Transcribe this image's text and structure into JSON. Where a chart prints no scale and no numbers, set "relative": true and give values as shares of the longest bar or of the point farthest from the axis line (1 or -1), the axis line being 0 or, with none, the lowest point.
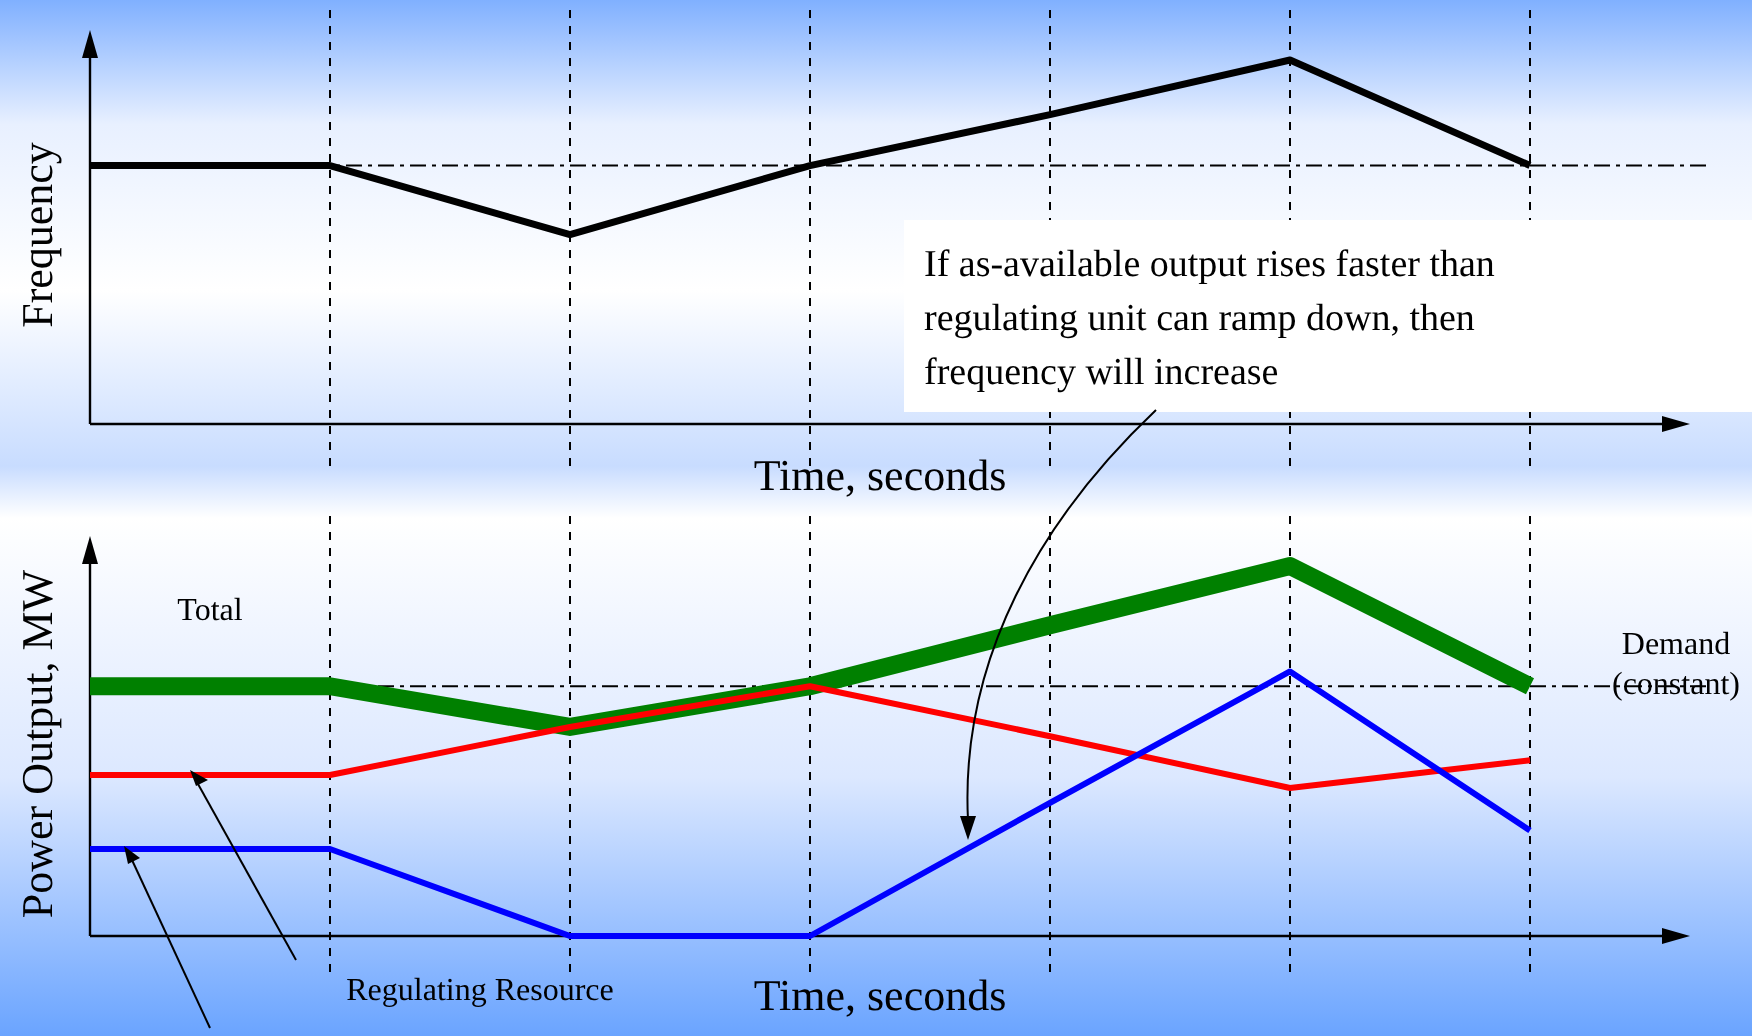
{
  "chart_data": [
    {
      "type": "line",
      "relative": true,
      "ylabel": "Frequency",
      "xlabel": "Time, seconds",
      "categories": [
        null,
        null,
        null,
        null,
        null,
        null,
        null
      ],
      "grid": "x",
      "line_style": "solid",
      "series": [
        {
          "color": "#000000",
          "values": [
            0.71,
            0.71,
            0.52,
            0.71,
            0.85,
            1,
            0.71
          ]
        }
      ],
      "ref_lines": [
        {
          "axis": "y",
          "value": 0.71,
          "line_style": "dashdot",
          "color": "#000000"
        }
      ],
      "annotations": [
        "If as-available output rises faster than regulating unit can ramp down, then frequency will increase"
      ]
    },
    {
      "type": "line",
      "relative": true,
      "ylabel": "Power Output, MW",
      "xlabel": "Time, seconds",
      "categories": [
        null,
        null,
        null,
        null,
        null,
        null,
        null
      ],
      "grid": "x",
      "line_style": "solid",
      "series": [
        {
          "color": "#008000",
          "values": [
            0.675,
            0.675,
            0.565,
            0.675,
            0.84,
            1,
            0.675
          ]
        },
        {
          "color": "#ff0000",
          "values": [
            0.435,
            0.435,
            0.565,
            0.675,
            0.54,
            0.4,
            0.475
          ]
        },
        {
          "color": "#0000ff",
          "values": [
            0.235,
            0.235,
            0,
            0,
            0.36,
            0.715,
            0.285
          ]
        }
      ],
      "ref_lines": [
        {
          "axis": "y",
          "value": 0.675,
          "label": "Demand (constant)",
          "line_style": "dashdot",
          "color": "#000000"
        }
      ],
      "annotations": [
        "Total",
        "Regulating Resource"
      ]
    }
  ]
}
